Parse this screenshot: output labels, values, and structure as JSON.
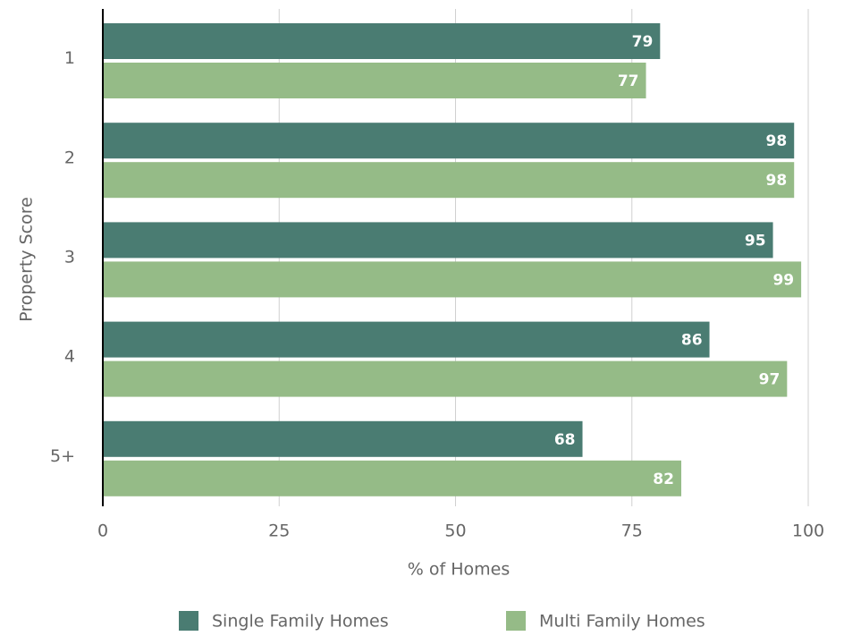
{
  "chart_data": {
    "type": "hbar",
    "categories": [
      "1",
      "2",
      "3",
      "4",
      "5+"
    ],
    "series": [
      {
        "name": "Single Family Homes",
        "color": "#4a7c72",
        "values": [
          79,
          98,
          95,
          86,
          68
        ]
      },
      {
        "name": "Multi Family Homes",
        "color": "#95bb87",
        "values": [
          77,
          98,
          99,
          97,
          82
        ]
      }
    ],
    "xlabel": "% of Homes",
    "ylabel": "Property Score",
    "xlim": [
      0,
      100
    ],
    "xticks": [
      0,
      25,
      50,
      75,
      100
    ],
    "grid": true,
    "legend": "bottom"
  }
}
